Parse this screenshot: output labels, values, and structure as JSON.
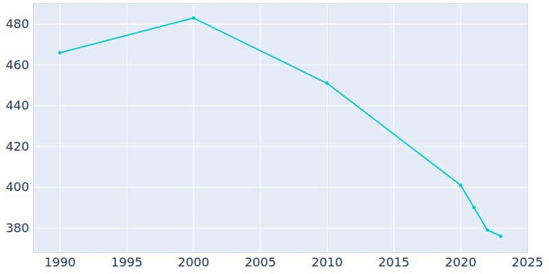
{
  "chart_data": {
    "type": "line",
    "x": [
      1990,
      2000,
      2010,
      2020,
      2021,
      2022,
      2023
    ],
    "values": [
      466,
      483,
      451,
      401,
      390,
      379,
      376
    ],
    "color": "#00cccc",
    "marker": "circle",
    "xlim": [
      1988,
      2025
    ],
    "xticks": [
      1990,
      1995,
      2000,
      2005,
      2010,
      2015,
      2020,
      2025
    ],
    "ylim": [
      368,
      490
    ],
    "yticks": [
      380,
      400,
      420,
      440,
      460,
      480
    ],
    "grid": true
  }
}
